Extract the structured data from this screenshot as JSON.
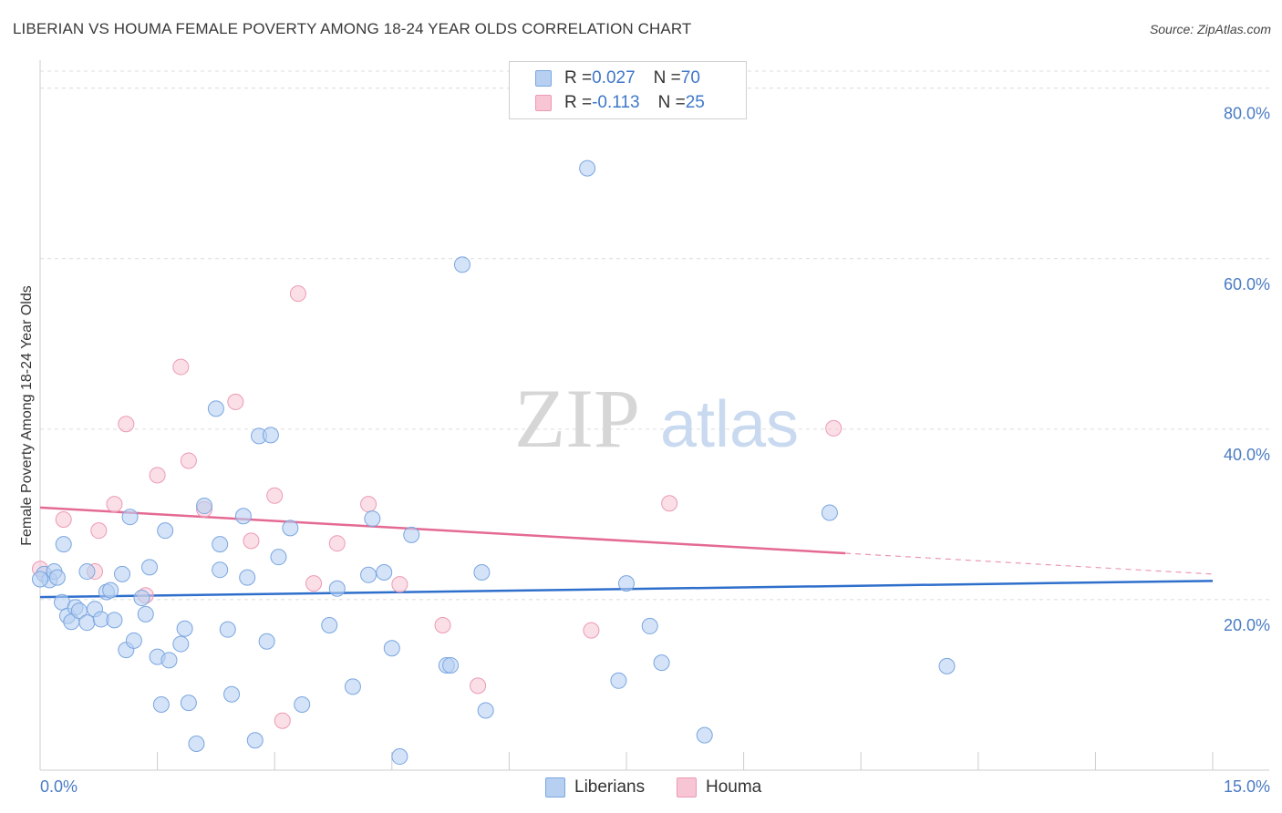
{
  "header": {
    "title": "LIBERIAN VS HOUMA FEMALE POVERTY AMONG 18-24 YEAR OLDS CORRELATION CHART",
    "source": "Source: ZipAtlas.com"
  },
  "legend": {
    "rows": [
      {
        "r_label": "R = ",
        "r_value": "0.027",
        "n_label": "N = ",
        "n_value": "70"
      },
      {
        "r_label": "R = ",
        "r_value": "-0.113",
        "n_label": "N = ",
        "n_value": "25"
      }
    ]
  },
  "bottom_legend": {
    "liberians": "Liberians",
    "houma": "Houma"
  },
  "watermark": {
    "zip": "ZIP",
    "atlas": "atlas"
  },
  "colors": {
    "liberians_fill": "#b7d0f2",
    "liberians_stroke": "#7aa6e0",
    "liberians_line": "#2f6fcc",
    "houma_fill": "#f7c5d4",
    "houma_stroke": "#ec9ab5",
    "houma_line": "#e46a93",
    "grid": "#dcdcdc",
    "tick_text": "#4a7cc4"
  },
  "chart_data": {
    "type": "scatter",
    "title": "LIBERIAN VS HOUMA FEMALE POVERTY AMONG 18-24 YEAR OLDS CORRELATION CHART",
    "xlabel": "",
    "ylabel": "Female Poverty Among 18-24 Year Olds",
    "xlim": [
      0,
      15
    ],
    "ylim": [
      0,
      82
    ],
    "x_tick_labels": [
      "0.0%",
      "15.0%"
    ],
    "y_ticks": [
      20,
      40,
      60,
      80
    ],
    "y_tick_labels": [
      "20.0%",
      "40.0%",
      "60.0%",
      "80.0%"
    ],
    "grid": true,
    "legend_position": "top-center",
    "series": [
      {
        "name": "Liberians",
        "r": 0.027,
        "n": 70,
        "trend": {
          "x": [
            0,
            15
          ],
          "y": [
            20.3,
            22.2
          ],
          "style": "solid"
        },
        "points": [
          [
            0.05,
            23.0
          ],
          [
            0.12,
            22.3
          ],
          [
            0.18,
            23.3
          ],
          [
            0.22,
            22.6
          ],
          [
            0.28,
            19.7
          ],
          [
            0.3,
            26.5
          ],
          [
            0.35,
            18.1
          ],
          [
            0.4,
            17.4
          ],
          [
            0.45,
            19.1
          ],
          [
            0.5,
            18.7
          ],
          [
            0.6,
            17.3
          ],
          [
            0.6,
            23.3
          ],
          [
            0.7,
            18.9
          ],
          [
            0.78,
            17.7
          ],
          [
            0.85,
            20.9
          ],
          [
            0.9,
            21.1
          ],
          [
            0.95,
            17.6
          ],
          [
            1.05,
            23.0
          ],
          [
            1.1,
            14.1
          ],
          [
            1.15,
            29.7
          ],
          [
            1.2,
            15.2
          ],
          [
            1.3,
            20.2
          ],
          [
            1.35,
            18.3
          ],
          [
            1.4,
            23.8
          ],
          [
            1.5,
            13.3
          ],
          [
            1.55,
            7.7
          ],
          [
            1.6,
            28.1
          ],
          [
            1.65,
            12.9
          ],
          [
            1.8,
            14.8
          ],
          [
            1.85,
            16.6
          ],
          [
            1.9,
            7.9
          ],
          [
            2.0,
            3.1
          ],
          [
            2.1,
            31.0
          ],
          [
            2.25,
            42.4
          ],
          [
            2.3,
            26.5
          ],
          [
            2.3,
            23.5
          ],
          [
            2.4,
            16.5
          ],
          [
            2.45,
            8.9
          ],
          [
            2.6,
            29.8
          ],
          [
            2.65,
            22.6
          ],
          [
            2.75,
            3.5
          ],
          [
            2.8,
            39.2
          ],
          [
            2.9,
            15.1
          ],
          [
            2.95,
            39.3
          ],
          [
            3.05,
            25.0
          ],
          [
            3.2,
            28.4
          ],
          [
            3.35,
            7.7
          ],
          [
            3.7,
            17.0
          ],
          [
            3.8,
            21.3
          ],
          [
            4.0,
            9.8
          ],
          [
            4.2,
            22.9
          ],
          [
            4.25,
            29.5
          ],
          [
            4.4,
            23.2
          ],
          [
            4.5,
            14.3
          ],
          [
            4.6,
            1.6
          ],
          [
            4.75,
            27.6
          ],
          [
            5.2,
            12.3
          ],
          [
            5.25,
            12.3
          ],
          [
            5.4,
            59.3
          ],
          [
            5.65,
            23.2
          ],
          [
            5.7,
            7.0
          ],
          [
            7.0,
            70.6
          ],
          [
            7.4,
            10.5
          ],
          [
            7.5,
            21.9
          ],
          [
            7.8,
            16.9
          ],
          [
            7.95,
            12.6
          ],
          [
            8.5,
            4.1
          ],
          [
            10.1,
            30.2
          ],
          [
            11.6,
            12.2
          ],
          [
            0.0,
            22.4
          ]
        ]
      },
      {
        "name": "Houma",
        "r": -0.113,
        "n": 25,
        "trend": {
          "x": [
            0,
            15
          ],
          "y": [
            30.8,
            23.0
          ],
          "solid_until_x": 10.3
        },
        "points": [
          [
            0.0,
            23.6
          ],
          [
            0.3,
            29.4
          ],
          [
            0.7,
            23.3
          ],
          [
            0.75,
            28.1
          ],
          [
            0.95,
            31.2
          ],
          [
            1.1,
            40.6
          ],
          [
            1.35,
            20.5
          ],
          [
            1.5,
            34.6
          ],
          [
            1.8,
            47.3
          ],
          [
            1.9,
            36.3
          ],
          [
            2.1,
            30.6
          ],
          [
            2.5,
            43.2
          ],
          [
            2.7,
            26.9
          ],
          [
            3.0,
            32.2
          ],
          [
            3.1,
            5.8
          ],
          [
            3.3,
            55.9
          ],
          [
            3.5,
            21.9
          ],
          [
            3.8,
            26.6
          ],
          [
            4.2,
            31.2
          ],
          [
            4.6,
            21.8
          ],
          [
            5.15,
            17.0
          ],
          [
            5.6,
            9.9
          ],
          [
            7.05,
            16.4
          ],
          [
            8.05,
            31.3
          ],
          [
            10.15,
            40.1
          ]
        ]
      }
    ]
  }
}
